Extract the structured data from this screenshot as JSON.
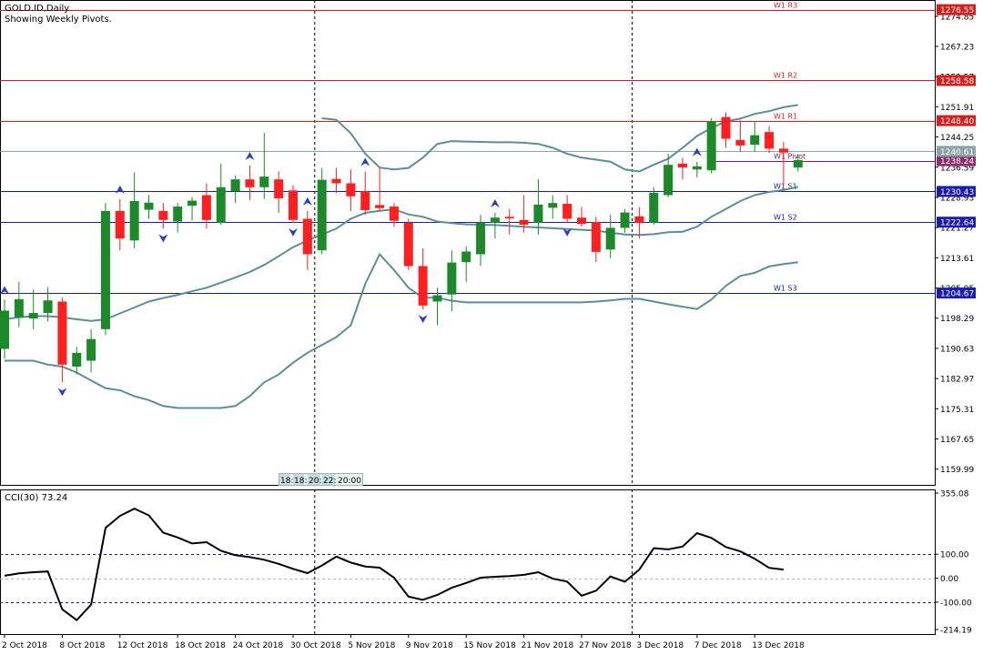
{
  "header": {
    "symbol_label": "GOLD.ID,Daily",
    "subtitle": "Showing Weekly Pivots."
  },
  "colors": {
    "bull": "#1d8a2a",
    "bear": "#ff1f1f",
    "bands": "#5b8f94",
    "resistance": "#d41f1f",
    "support": "#1b1bb0",
    "pivot_line": "#8a1a5a",
    "pivot_box": "#8e2c6e",
    "price_box": "#8aa4a8",
    "cci_line": "#000000",
    "cci_levels": "#1b1bb0",
    "fractal": "#2a3ccc"
  },
  "time_stamps": [
    "18:",
    "18:",
    "20:",
    "22:",
    "20:00"
  ],
  "chart_data": {
    "type": "candlestick",
    "title": "GOLD.ID,Daily",
    "ylim": [
      1156,
      1279
    ],
    "y_ticks": [
      "1274.85",
      "1267.23",
      "1259.57",
      "1251.91",
      "1244.25",
      "1236.59",
      "1228.93",
      "1221.27",
      "1213.61",
      "1205.95",
      "1198.29",
      "1190.63",
      "1182.97",
      "1175.31",
      "1167.65",
      "1159.99"
    ],
    "x_labels": [
      {
        "index": 0,
        "label": "2 Oct 2018"
      },
      {
        "index": 4,
        "label": "8 Oct 2018"
      },
      {
        "index": 8,
        "label": "12 Oct 2018"
      },
      {
        "index": 12,
        "label": "18 Oct 2018"
      },
      {
        "index": 16,
        "label": "24 Oct 2018"
      },
      {
        "index": 20,
        "label": "30 Oct 2018"
      },
      {
        "index": 24,
        "label": "5 Nov 2018"
      },
      {
        "index": 28,
        "label": "9 Nov 2018"
      },
      {
        "index": 32,
        "label": "15 Nov 2018"
      },
      {
        "index": 36,
        "label": "21 Nov 2018"
      },
      {
        "index": 40,
        "label": "27 Nov 2018"
      },
      {
        "index": 44,
        "label": "3 Dec 2018"
      },
      {
        "index": 48,
        "label": "7 Dec 2018"
      },
      {
        "index": 52,
        "label": "13 Dec 2018"
      }
    ],
    "period_separators": [
      21.5,
      43.5
    ],
    "candles": [
      {
        "o": 1190.5,
        "h": 1203,
        "l": 1188,
        "c": 1200.2
      },
      {
        "o": 1198.5,
        "h": 1207.5,
        "l": 1196,
        "c": 1203.1
      },
      {
        "o": 1198.2,
        "h": 1205.5,
        "l": 1195.5,
        "c": 1199.6
      },
      {
        "o": 1199.6,
        "h": 1206.2,
        "l": 1197.5,
        "c": 1202.8
      },
      {
        "o": 1202.5,
        "h": 1203.5,
        "l": 1182,
        "c": 1186.5
      },
      {
        "o": 1186,
        "h": 1191,
        "l": 1184,
        "c": 1189.5
      },
      {
        "o": 1187.5,
        "h": 1195.5,
        "l": 1184.5,
        "c": 1193
      },
      {
        "o": 1195.5,
        "h": 1227.5,
        "l": 1194,
        "c": 1225.5
      },
      {
        "o": 1225.5,
        "h": 1228.5,
        "l": 1215.5,
        "c": 1218.5
      },
      {
        "o": 1218,
        "h": 1235.3,
        "l": 1216,
        "c": 1228
      },
      {
        "o": 1225.8,
        "h": 1229.5,
        "l": 1223.5,
        "c": 1227.6
      },
      {
        "o": 1225.5,
        "h": 1227.5,
        "l": 1221,
        "c": 1223.2
      },
      {
        "o": 1222.8,
        "h": 1227.5,
        "l": 1220,
        "c": 1226.6
      },
      {
        "o": 1226.8,
        "h": 1229,
        "l": 1223,
        "c": 1228.1
      },
      {
        "o": 1229.5,
        "h": 1232.5,
        "l": 1221,
        "c": 1223.2
      },
      {
        "o": 1222.5,
        "h": 1237.5,
        "l": 1222,
        "c": 1231.5
      },
      {
        "o": 1230.5,
        "h": 1234.5,
        "l": 1227.5,
        "c": 1233.5
      },
      {
        "o": 1233.5,
        "h": 1237,
        "l": 1228.2,
        "c": 1231.5
      },
      {
        "o": 1231.5,
        "h": 1245.3,
        "l": 1228.5,
        "c": 1234.2
      },
      {
        "o": 1233.5,
        "h": 1235.5,
        "l": 1225,
        "c": 1228.7
      },
      {
        "o": 1230.7,
        "h": 1232,
        "l": 1222.5,
        "c": 1223.2
      },
      {
        "o": 1223.5,
        "h": 1225.5,
        "l": 1210.5,
        "c": 1214.5
      },
      {
        "o": 1215.5,
        "h": 1236.4,
        "l": 1214.5,
        "c": 1233.4
      },
      {
        "o": 1233.6,
        "h": 1236.4,
        "l": 1230,
        "c": 1232.5
      },
      {
        "o": 1232.5,
        "h": 1236,
        "l": 1225.5,
        "c": 1229.2
      },
      {
        "o": 1230.5,
        "h": 1235.5,
        "l": 1224.5,
        "c": 1225.7
      },
      {
        "o": 1227,
        "h": 1236.4,
        "l": 1225.5,
        "c": 1226.2
      },
      {
        "o": 1226.6,
        "h": 1227.5,
        "l": 1221.5,
        "c": 1223
      },
      {
        "o": 1222.5,
        "h": 1223.5,
        "l": 1210.5,
        "c": 1211.5
      },
      {
        "o": 1211.5,
        "h": 1216,
        "l": 1200.5,
        "c": 1201.5
      },
      {
        "o": 1202.5,
        "h": 1206,
        "l": 1196.5,
        "c": 1204.1
      },
      {
        "o": 1204.3,
        "h": 1215.5,
        "l": 1200,
        "c": 1212.4
      },
      {
        "o": 1212.5,
        "h": 1216.5,
        "l": 1207.5,
        "c": 1215.2
      },
      {
        "o": 1214.5,
        "h": 1224.5,
        "l": 1211.5,
        "c": 1222.6
      },
      {
        "o": 1222.5,
        "h": 1225,
        "l": 1218.5,
        "c": 1223.8
      },
      {
        "o": 1224,
        "h": 1226,
        "l": 1219.5,
        "c": 1223.6
      },
      {
        "o": 1223.2,
        "h": 1229.5,
        "l": 1220,
        "c": 1222
      },
      {
        "o": 1222.5,
        "h": 1233.5,
        "l": 1219.5,
        "c": 1227.1
      },
      {
        "o": 1226.3,
        "h": 1229.5,
        "l": 1223.5,
        "c": 1227.5
      },
      {
        "o": 1227.3,
        "h": 1229.5,
        "l": 1222.5,
        "c": 1223.5
      },
      {
        "o": 1223.8,
        "h": 1226.5,
        "l": 1221.5,
        "c": 1222.2
      },
      {
        "o": 1222.7,
        "h": 1224,
        "l": 1212.5,
        "c": 1215.1
      },
      {
        "o": 1215.7,
        "h": 1224.5,
        "l": 1213.5,
        "c": 1221.2
      },
      {
        "o": 1221.2,
        "h": 1226,
        "l": 1220,
        "c": 1225.1
      },
      {
        "o": 1224.1,
        "h": 1226.5,
        "l": 1218.5,
        "c": 1222.5
      },
      {
        "o": 1222.5,
        "h": 1231.5,
        "l": 1222,
        "c": 1230.1
      },
      {
        "o": 1229.5,
        "h": 1240,
        "l": 1229,
        "c": 1237.2
      },
      {
        "o": 1237.5,
        "h": 1239,
        "l": 1233.5,
        "c": 1236.5
      },
      {
        "o": 1236,
        "h": 1238,
        "l": 1234,
        "c": 1236.8
      },
      {
        "o": 1235.8,
        "h": 1249,
        "l": 1235,
        "c": 1248.2
      },
      {
        "o": 1249.3,
        "h": 1250.5,
        "l": 1241.5,
        "c": 1243.8
      },
      {
        "o": 1243.5,
        "h": 1248.5,
        "l": 1240.5,
        "c": 1242.1
      },
      {
        "o": 1242.3,
        "h": 1248.3,
        "l": 1240.5,
        "c": 1244.7
      },
      {
        "o": 1245.5,
        "h": 1247,
        "l": 1240.2,
        "c": 1241.3
      },
      {
        "o": 1241.3,
        "h": 1243,
        "l": 1232,
        "c": 1240.3
      },
      {
        "o": 1236.5,
        "h": 1240,
        "l": 1235.5,
        "c": 1238.4
      }
    ],
    "bollinger_upper": [
      null,
      null,
      null,
      null,
      null,
      null,
      null,
      null,
      null,
      null,
      null,
      null,
      null,
      null,
      null,
      null,
      null,
      null,
      null,
      null,
      null,
      null,
      1249.0,
      1248.6,
      1245.2,
      1240.0,
      1236.5,
      1236.0,
      1236.4,
      1239.0,
      1242.5,
      1243.2,
      1243.1,
      1243.0,
      1242.9,
      1242.9,
      1242.8,
      1242.5,
      1241.5,
      1240.0,
      1239.0,
      1238.5,
      1238.0,
      1236.0,
      1235.5,
      1237.2,
      1238.7,
      1241.5,
      1244.5,
      1246.5,
      1248.2,
      1248.9,
      1250.1,
      1250.8,
      1251.8,
      1252.4
    ],
    "bollinger_middle": [
      1198.0,
      1198.5,
      1198.8,
      1198.8,
      1198.5,
      1198.0,
      1197.6,
      1198.0,
      1199.5,
      1201.0,
      1202.5,
      1203.4,
      1204.2,
      1205.1,
      1206.0,
      1207.3,
      1208.6,
      1210.0,
      1211.8,
      1214.0,
      1216.3,
      1218.0,
      1219.5,
      1221.0,
      1223.5,
      1225.0,
      1225.5,
      1225.9,
      1224.6,
      1224.0,
      1222.8,
      1222.4,
      1222.1,
      1222.0,
      1221.9,
      1221.7,
      1221.5,
      1221.3,
      1221.1,
      1220.9,
      1220.7,
      1220.5,
      1220.0,
      1219.5,
      1219.4,
      1219.6,
      1220.1,
      1220.2,
      1221.5,
      1224.0,
      1226.0,
      1228.0,
      1229.5,
      1230.3,
      1230.8,
      1231.6
    ],
    "bollinger_lower": [
      1187.5,
      1187.5,
      1187.5,
      1186.5,
      1186.0,
      1184.5,
      1182.5,
      1180.5,
      1180.0,
      1178.5,
      1177.5,
      1176.0,
      1175.5,
      1175.5,
      1175.5,
      1175.5,
      1176.0,
      1178.5,
      1182.0,
      1184.0,
      1187.0,
      1189.5,
      1191.5,
      1193.5,
      1196.5,
      1207.0,
      1214.5,
      1210.5,
      1206.0,
      1203.5,
      1203.5,
      1202.7,
      1202.3,
      1202.3,
      1202.3,
      1202.3,
      1202.3,
      1202.3,
      1202.3,
      1202.3,
      1202.3,
      1202.5,
      1202.8,
      1203.2,
      1203.2,
      1202.5,
      1201.8,
      1201.2,
      1200.6,
      1203.0,
      1206.5,
      1209.0,
      1209.8,
      1211.4,
      1212.0,
      1212.5
    ],
    "pivots": [
      {
        "name": "W1 R3",
        "value": 1276.55,
        "label": "1276.55",
        "role": "resistance"
      },
      {
        "name": "W1 R2",
        "value": 1258.58,
        "label": "1258.58",
        "role": "resistance"
      },
      {
        "name": "W1 R1",
        "value": 1248.4,
        "label": "1248.40",
        "role": "resistance"
      },
      {
        "name": "W1 Pivot",
        "value": 1238.24,
        "label": "1238.24",
        "role": "pivot"
      },
      {
        "name": "W1 S1",
        "value": 1230.43,
        "label": "1230.43",
        "role": "support"
      },
      {
        "name": "W1 S2",
        "value": 1222.64,
        "label": "1222.64",
        "role": "support"
      },
      {
        "name": "W1 S3",
        "value": 1204.67,
        "label": "1204.67",
        "role": "support"
      }
    ],
    "last_price": {
      "value": 1240.61,
      "label": "1240.61"
    },
    "pivot_line_start_index": 49,
    "fractals_up": [
      0,
      8,
      17,
      21,
      25,
      34,
      48
    ],
    "fractals_down": [
      4,
      11,
      20,
      29,
      39
    ],
    "cci": {
      "title": "CCI(30) 73.24",
      "ylim": [
        -214.19,
        355.08
      ],
      "y_ticks": [
        "355.08",
        "100.00",
        "0.00",
        "-100.00",
        "-214.19"
      ],
      "levels": [
        100,
        -100
      ],
      "values": [
        10,
        20,
        25,
        28,
        -130,
        -175,
        -110,
        210,
        260,
        290,
        262,
        190,
        170,
        145,
        150,
        114,
        96,
        88,
        77,
        60,
        39,
        21,
        53,
        90,
        65,
        49,
        44,
        2,
        -77,
        -90,
        -70,
        -40,
        -20,
        2,
        6,
        9,
        14,
        25,
        -2,
        -14,
        -73,
        -52,
        7,
        -15,
        36,
        125,
        120,
        132,
        188,
        168,
        130,
        112,
        81,
        43,
        36
      ]
    }
  }
}
